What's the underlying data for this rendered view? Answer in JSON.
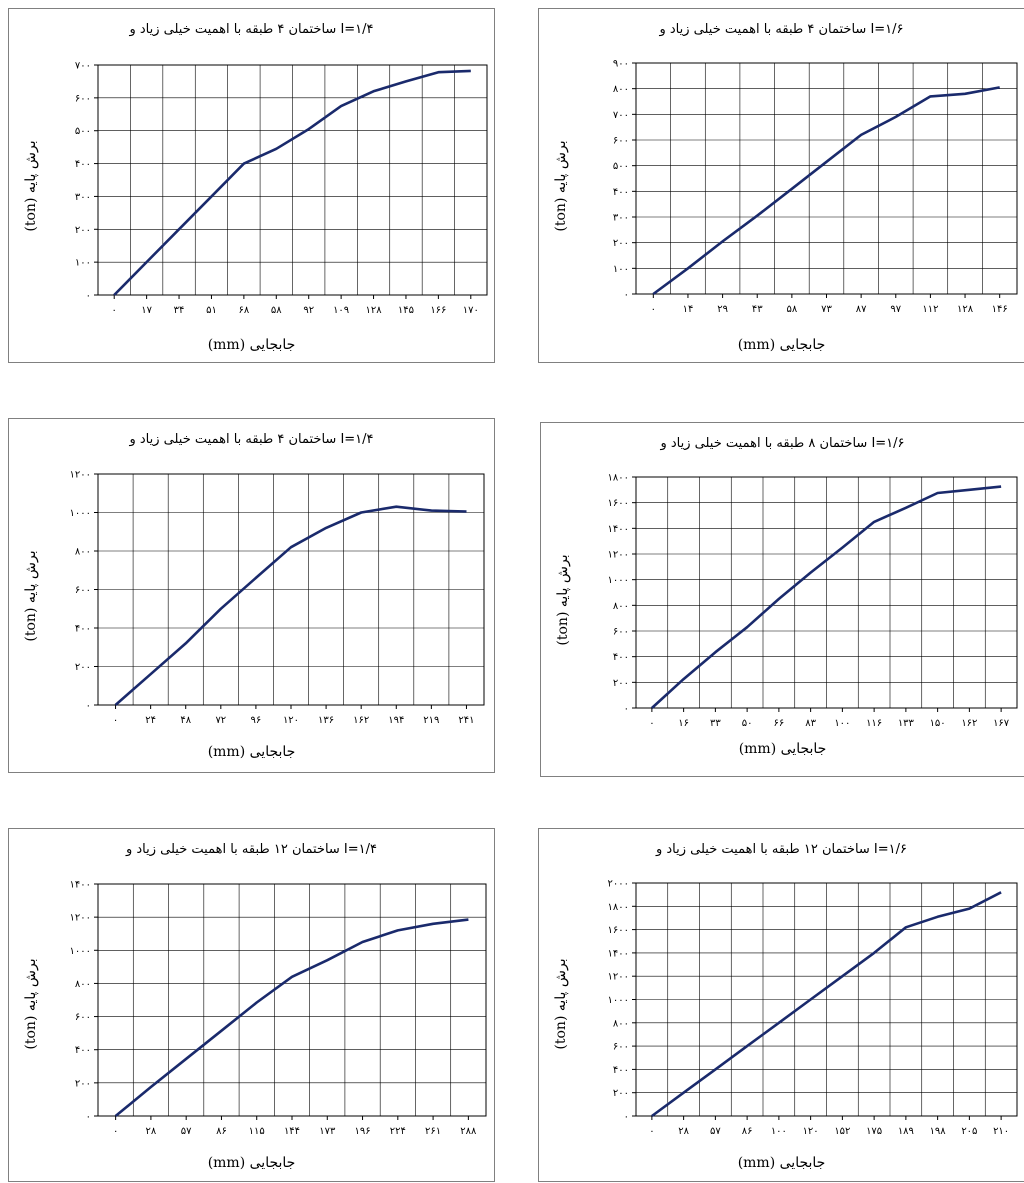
{
  "chart_data": [
    {
      "type": "line",
      "title": "ساختمان ۴ طبقه با اهمیت خیلی زیاد و I=۱/۴",
      "xlabel": "(mm) جابجایی",
      "ylabel": "(ton) برش پایه",
      "categories": [
        "۰",
        "۱۷",
        "۳۴",
        "۵۱",
        "۶۸",
        "۵۸",
        "۹۲",
        "۱۰۹",
        "۱۲۸",
        "۱۴۵",
        "۱۶۶",
        "۱۷۰"
      ],
      "y_ticks": [
        "۰",
        "۱۰۰",
        "۲۰۰",
        "۳۰۰",
        "۴۰۰",
        "۵۰۰",
        "۶۰۰",
        "۷۰۰"
      ],
      "ylim": [
        0,
        700
      ],
      "series": [
        {
          "values": [
            0,
            100,
            200,
            300,
            400,
            445,
            505,
            575,
            620,
            650,
            678,
            682
          ]
        }
      ],
      "grid": true,
      "line_color": "#1a2a6c"
    },
    {
      "type": "line",
      "title": "ساختمان ۴ طبقه با اهمیت خیلی زیاد و I=۱/۶",
      "xlabel": "(mm) جابجایی",
      "ylabel": "(ton) برش پایه",
      "categories": [
        "۰",
        "۱۴",
        "۲۹",
        "۴۳",
        "۵۸",
        "۷۳",
        "۸۷",
        "۹۷",
        "۱۱۲",
        "۱۲۸",
        "۱۴۶"
      ],
      "y_ticks": [
        "۰",
        "۱۰۰",
        "۲۰۰",
        "۳۰۰",
        "۴۰۰",
        "۵۰۰",
        "۶۰۰",
        "۷۰۰",
        "۸۰۰",
        "۹۰۰"
      ],
      "ylim": [
        0,
        900
      ],
      "series": [
        {
          "values": [
            0,
            100,
            205,
            305,
            410,
            515,
            620,
            690,
            770,
            780,
            805
          ]
        }
      ],
      "grid": true,
      "line_color": "#1a2a6c"
    },
    {
      "type": "line",
      "title": "ساختمان ۴ طبقه با اهمیت خیلی زیاد و I=۱/۴",
      "xlabel": "(mm) جابجایی",
      "ylabel": "(ton) برش پایه",
      "categories": [
        "۰",
        "۲۴",
        "۴۸",
        "۷۲",
        "۹۶",
        "۱۲۰",
        "۱۳۶",
        "۱۶۲",
        "۱۹۴",
        "۲۱۹",
        "۲۴۱"
      ],
      "y_ticks": [
        "۰",
        "۲۰۰",
        "۴۰۰",
        "۶۰۰",
        "۸۰۰",
        "۱۰۰۰",
        "۱۲۰۰"
      ],
      "ylim": [
        0,
        1200
      ],
      "series": [
        {
          "values": [
            0,
            160,
            320,
            500,
            660,
            820,
            920,
            1000,
            1030,
            1010,
            1005
          ]
        }
      ],
      "grid": true,
      "line_color": "#1a2a6c"
    },
    {
      "type": "line",
      "title": "ساختمان ۸ طبقه با اهمیت خیلی زیاد و I=۱/۶",
      "xlabel": "(mm) جابجایی",
      "ylabel": "(ton) برش پایه",
      "categories": [
        "۰",
        "۱۶",
        "۳۳",
        "۵۰",
        "۶۶",
        "۸۳",
        "۱۰۰",
        "۱۱۶",
        "۱۳۳",
        "۱۵۰",
        "۱۶۲",
        "۱۶۷"
      ],
      "y_ticks": [
        "۰",
        "۲۰۰",
        "۴۰۰",
        "۶۰۰",
        "۸۰۰",
        "۱۰۰۰",
        "۱۲۰۰",
        "۱۴۰۰",
        "۱۶۰۰",
        "۱۸۰۰"
      ],
      "ylim": [
        0,
        1800
      ],
      "series": [
        {
          "values": [
            0,
            225,
            435,
            630,
            850,
            1055,
            1250,
            1450,
            1560,
            1675,
            1700,
            1725
          ]
        }
      ],
      "grid": true,
      "line_color": "#1a2a6c"
    },
    {
      "type": "line",
      "title": "ساختمان ۱۲ طبقه با اهمیت خیلی زیاد و I=۱/۴",
      "xlabel": "(mm) جابجایی",
      "ylabel": "(ton) برش پایه",
      "categories": [
        "۰",
        "۲۸",
        "۵۷",
        "۸۶",
        "۱۱۵",
        "۱۴۴",
        "۱۷۳",
        "۱۹۶",
        "۲۲۴",
        "۲۶۱",
        "۲۸۸"
      ],
      "y_ticks": [
        "۰",
        "۲۰۰",
        "۴۰۰",
        "۶۰۰",
        "۸۰۰",
        "۱۰۰۰",
        "۱۲۰۰",
        "۱۴۰۰"
      ],
      "ylim": [
        0,
        1400
      ],
      "series": [
        {
          "values": [
            0,
            175,
            345,
            515,
            685,
            840,
            940,
            1050,
            1120,
            1160,
            1185
          ]
        }
      ],
      "grid": true,
      "line_color": "#1a2a6c"
    },
    {
      "type": "line",
      "title": "ساختمان ۱۲ طبقه با اهمیت خیلی زیاد و I=۱/۶",
      "xlabel": "(mm) جابجایی",
      "ylabel": "(ton) برش پایه",
      "categories": [
        "۰",
        "۲۸",
        "۵۷",
        "۸۶",
        "۱۰۰",
        "۱۲۰",
        "۱۵۲",
        "۱۷۵",
        "۱۸۹",
        "۱۹۸",
        "۲۰۵",
        "۲۱۰"
      ],
      "y_ticks": [
        "۰",
        "۲۰۰",
        "۴۰۰",
        "۶۰۰",
        "۸۰۰",
        "۱۰۰۰",
        "۱۲۰۰",
        "۱۴۰۰",
        "۱۶۰۰",
        "۱۸۰۰",
        "۲۰۰۰"
      ],
      "ylim": [
        0,
        2000
      ],
      "series": [
        {
          "values": [
            0,
            200,
            400,
            600,
            800,
            1000,
            1200,
            1400,
            1620,
            1710,
            1780,
            1920
          ]
        }
      ],
      "grid": true,
      "line_color": "#1a2a6c"
    }
  ]
}
